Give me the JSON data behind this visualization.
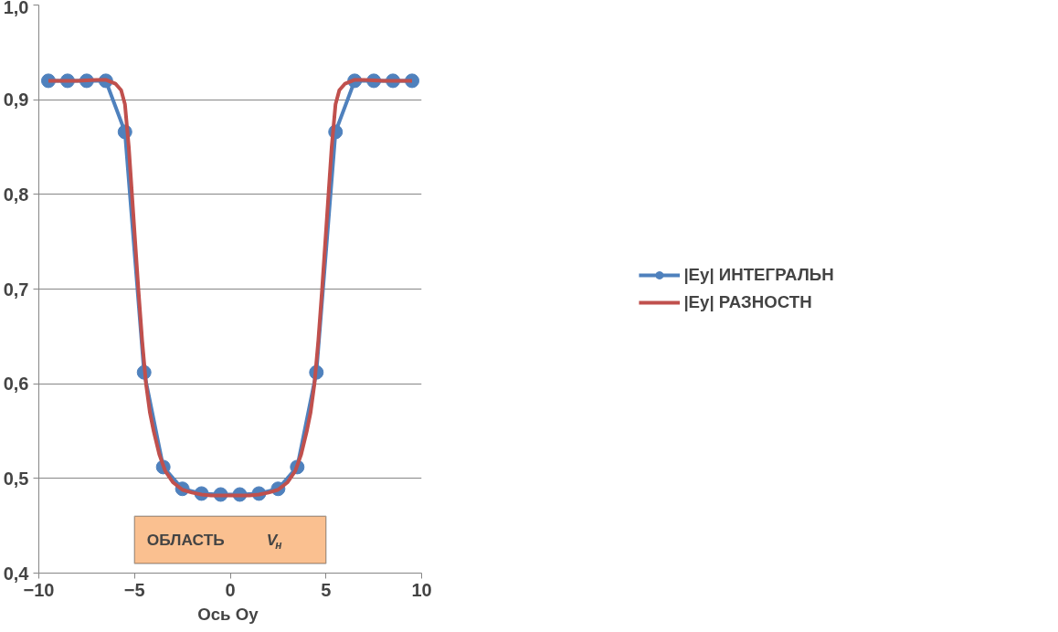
{
  "chart_data": {
    "type": "line",
    "xlabel": "Ось  Oy",
    "xlim": [
      -10,
      10
    ],
    "xticks": [
      -10,
      -5,
      0,
      5,
      10
    ],
    "ylim": [
      0.4,
      1.0
    ],
    "yticks": [
      {
        "value": 0.4,
        "label": "0,4"
      },
      {
        "value": 0.5,
        "label": "0,5"
      },
      {
        "value": 0.6,
        "label": "0,6"
      },
      {
        "value": 0.7,
        "label": "0,7"
      },
      {
        "value": 0.8,
        "label": "0,8"
      },
      {
        "value": 0.9,
        "label": "0,9"
      },
      {
        "value": 1.0,
        "label": "1,0"
      }
    ],
    "grid": "y",
    "legend": "right",
    "series": [
      {
        "name": "|Ey| ИНТЕГРАЛЬН",
        "color": "#4f81bd",
        "marker": "circle",
        "x": [
          -9.5,
          -8.5,
          -7.5,
          -6.5,
          -5.5,
          -4.5,
          -3.5,
          -2.5,
          -1.5,
          -0.5,
          0.5,
          1.5,
          2.5,
          3.5,
          4.5,
          5.5,
          6.5,
          7.5,
          8.5,
          9.5
        ],
        "values": [
          0.92,
          0.92,
          0.92,
          0.92,
          0.866,
          0.612,
          0.512,
          0.489,
          0.484,
          0.483,
          0.483,
          0.484,
          0.489,
          0.512,
          0.612,
          0.866,
          0.92,
          0.92,
          0.92,
          0.92
        ]
      },
      {
        "name": "|Ey| РАЗНОСТН",
        "color": "#c0504d",
        "marker": "none",
        "x": [
          -9.5,
          -8,
          -7,
          -6.5,
          -6,
          -5.7,
          -5.5,
          -5.3,
          -5.1,
          -5,
          -4.8,
          -4.6,
          -4.4,
          -4.2,
          -4,
          -3.7,
          -3.4,
          -3,
          -2.5,
          -2,
          -1.5,
          -1,
          0,
          1,
          1.5,
          2,
          2.5,
          3,
          3.4,
          3.7,
          4,
          4.2,
          4.4,
          4.6,
          4.8,
          5,
          5.1,
          5.3,
          5.5,
          5.7,
          6,
          6.5,
          7,
          8,
          9.5
        ],
        "values": [
          0.92,
          0.92,
          0.921,
          0.921,
          0.917,
          0.91,
          0.895,
          0.85,
          0.79,
          0.76,
          0.7,
          0.645,
          0.6,
          0.57,
          0.55,
          0.525,
          0.508,
          0.496,
          0.488,
          0.485,
          0.483,
          0.482,
          0.482,
          0.482,
          0.483,
          0.485,
          0.488,
          0.496,
          0.508,
          0.525,
          0.55,
          0.57,
          0.6,
          0.645,
          0.7,
          0.76,
          0.79,
          0.85,
          0.895,
          0.91,
          0.917,
          0.921,
          0.921,
          0.92,
          0.92
        ]
      }
    ],
    "bands": [
      {
        "axis": "x",
        "from": -5,
        "to": 5,
        "label": "ОБЛАСТЬ V$_{н}$",
        "color": "#fac090"
      }
    ]
  }
}
